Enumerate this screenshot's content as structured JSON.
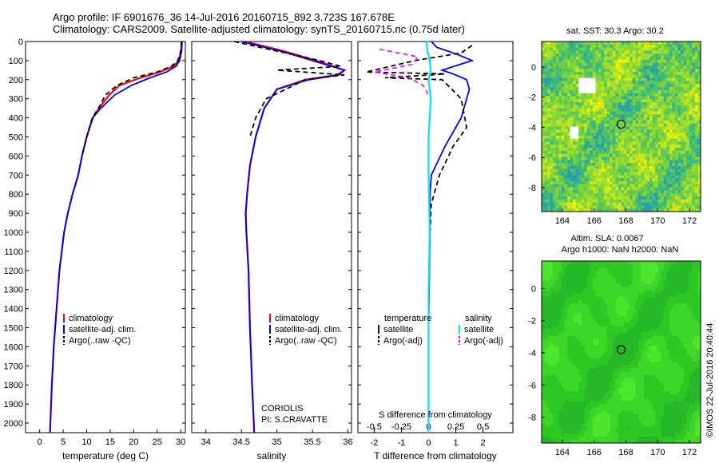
{
  "header": {
    "title_line1": "Argo profile: IF 6901676_36 14-Jul-2016 20160715_892 3.723S 167.678E",
    "title_line2": "Climatology: CARS2009. Satellite-adjusted climatology: synTS_20160715.nc (0.75d later)"
  },
  "colors": {
    "climatology": "#ff0000",
    "satellite": "#0000ff",
    "argo": "#000000",
    "sat_salinity": "#00e5ee",
    "argo_salinity": "#ff00ff"
  },
  "chart_data": [
    {
      "type": "line",
      "id": "temperature",
      "xlabel": "temperature (deg C)",
      "ylabel": "",
      "xlim": [
        -3,
        31
      ],
      "ylim": [
        2050,
        0
      ],
      "xticks": [
        0,
        5,
        10,
        15,
        20,
        25,
        30
      ],
      "yticks": [
        0,
        100,
        200,
        300,
        400,
        500,
        600,
        700,
        800,
        900,
        1000,
        1100,
        1200,
        1300,
        1400,
        1500,
        1600,
        1700,
        1800,
        1900,
        2000
      ],
      "legend": [
        "climatology",
        "satellite-adj. clim.",
        "Argo(..raw -QC)"
      ],
      "series": [
        {
          "name": "climatology",
          "x": [
            30.2,
            30.1,
            29.6,
            28.5,
            25.5,
            21.5,
            17.0,
            14.8,
            12.6,
            11.3,
            10.0,
            9.0,
            8.2,
            7.0,
            6.0,
            5.2,
            4.2,
            3.6,
            3.0,
            2.6,
            2.2
          ],
          "y": [
            0,
            50,
            100,
            130,
            160,
            190,
            230,
            280,
            350,
            400,
            500,
            600,
            700,
            800,
            900,
            1000,
            1200,
            1400,
            1600,
            1800,
            2050
          ]
        },
        {
          "name": "satellite-adj. clim.",
          "x": [
            30.3,
            30.2,
            29.8,
            29.0,
            27.0,
            23.5,
            19.5,
            16.0,
            13.0,
            11.3,
            10.0,
            9.0,
            8.2,
            7.0,
            6.0,
            5.2,
            4.2,
            3.6,
            3.0,
            2.6,
            2.2
          ],
          "y": [
            0,
            50,
            100,
            130,
            160,
            190,
            230,
            280,
            350,
            400,
            500,
            600,
            700,
            800,
            900,
            1000,
            1200,
            1400,
            1600,
            1800,
            2050
          ]
        },
        {
          "name": "Argo(..raw -QC)",
          "x": [
            30.2,
            30.0,
            29.4,
            28.0,
            25.0,
            20.0,
            16.5,
            14.0,
            12.5,
            11.2,
            10.0,
            9.0
          ],
          "y": [
            0,
            50,
            100,
            130,
            160,
            190,
            230,
            280,
            350,
            400,
            500,
            600
          ]
        }
      ]
    },
    {
      "type": "line",
      "id": "salinity",
      "xlabel": "salinity",
      "ylabel": "",
      "xlim": [
        33.8,
        36.05
      ],
      "ylim": [
        2050,
        0
      ],
      "xticks": [
        34,
        34.5,
        35,
        35.5,
        36
      ],
      "legend": [
        "climatology",
        "satellite-adj. clim.",
        "Argo(..raw -QC)"
      ],
      "annotation": [
        "CORIOLIS",
        "PI: S.CRAVATTE"
      ],
      "series": [
        {
          "name": "climatology",
          "x": [
            34.55,
            35.1,
            35.55,
            35.95,
            35.85,
            35.4,
            35.0,
            34.82,
            34.7,
            34.62,
            34.58,
            34.56,
            34.57,
            34.6,
            34.62,
            34.65,
            34.68
          ],
          "y": [
            0,
            50,
            100,
            150,
            175,
            200,
            250,
            350,
            500,
            650,
            800,
            900,
            1000,
            1200,
            1500,
            1800,
            2050
          ]
        },
        {
          "name": "satellite-adj. clim.",
          "x": [
            34.5,
            35.05,
            35.5,
            35.95,
            35.88,
            35.45,
            35.0,
            34.82,
            34.7,
            34.62,
            34.58,
            34.56,
            34.57,
            34.6,
            34.62,
            34.65,
            34.68
          ],
          "y": [
            0,
            50,
            100,
            150,
            175,
            200,
            250,
            350,
            500,
            650,
            800,
            900,
            1000,
            1200,
            1500,
            1800,
            2050
          ]
        },
        {
          "name": "Argo(..raw -QC)",
          "x": [
            34.4,
            35.0,
            35.6,
            35.9,
            35.0,
            35.95,
            35.4,
            34.85,
            34.7,
            34.62
          ],
          "y": [
            0,
            50,
            100,
            130,
            150,
            175,
            200,
            300,
            400,
            500
          ]
        }
      ]
    },
    {
      "type": "line",
      "id": "difference",
      "xlabel": "T difference from climatology",
      "x2label": "S difference from climatology",
      "xlim": [
        -2.6,
        3.1
      ],
      "x2lim": [
        -0.65,
        0.775
      ],
      "ylim": [
        2050,
        0
      ],
      "xticks": [
        -2,
        -1,
        0,
        1,
        2
      ],
      "x2ticks": [
        -0.5,
        -0.25,
        0,
        0.25,
        0.5
      ],
      "x2ticklabels": [
        "-0.5",
        "-0.25",
        "0",
        "0.25",
        "0.5"
      ],
      "legend_temperature_title": "temperature",
      "legend_salinity_title": "salinity",
      "legend": [
        "satellite",
        "Argo(-adj)",
        "satellite",
        "Argo(-adj)"
      ],
      "series": [
        {
          "name": "temperature satellite",
          "x": [
            0.1,
            0.3,
            1.1,
            1.6,
            0.5,
            0.9,
            1.4,
            1.5,
            1.2,
            0.6,
            0.1,
            0.05,
            0.05,
            0.0,
            0.0
          ],
          "y": [
            0,
            30,
            70,
            100,
            150,
            170,
            200,
            250,
            400,
            550,
            700,
            800,
            1000,
            1500,
            2050
          ]
        },
        {
          "name": "temperature Argo(-adj)",
          "x": [
            1.6,
            1.2,
            -0.5,
            -2.3,
            0.6,
            -1.6,
            0.5,
            1.2,
            1.4,
            0.9,
            0.4,
            0.1,
            0.05
          ],
          "y": [
            20,
            60,
            100,
            160,
            170,
            190,
            200,
            300,
            450,
            550,
            700,
            850,
            1000
          ]
        },
        {
          "name": "salinity satellite",
          "x": [
            -0.02,
            -0.01,
            0.01,
            0.02,
            0.0,
            0.02,
            0.01,
            0.0,
            0.0,
            0.01,
            0.0,
            0.0,
            0.0
          ],
          "y": [
            0,
            50,
            100,
            150,
            200,
            300,
            400,
            500,
            700,
            1000,
            1300,
            1600,
            2050
          ]
        },
        {
          "name": "salinity Argo(-adj)",
          "x": [
            -0.45,
            -0.1,
            -0.15,
            -0.5,
            -0.18,
            -0.05,
            0.0
          ],
          "y": [
            40,
            80,
            120,
            160,
            190,
            230,
            280
          ]
        }
      ]
    },
    {
      "type": "heatmap",
      "id": "sst",
      "title": "sat. SST: 30.3 Argo: 30.2",
      "xlim": [
        162.7,
        172.7
      ],
      "ylim": [
        -9.6,
        1.7
      ],
      "xticks": [
        164,
        166,
        168,
        170,
        172
      ],
      "yticks": [
        -8,
        -6,
        -4,
        -2,
        0
      ],
      "marker": {
        "x": 167.7,
        "y": -3.8
      }
    },
    {
      "type": "heatmap",
      "id": "sla",
      "title_line1": "Altim. SLA: 0.0067",
      "title_line2": "Argo h1000: NaN h2000: NaN",
      "xlim": [
        162.7,
        172.7
      ],
      "ylim": [
        -9.6,
        1.7
      ],
      "xticks": [
        164,
        166,
        168,
        170,
        172
      ],
      "yticks": [
        -8,
        -6,
        -4,
        -2,
        0
      ],
      "marker": {
        "x": 167.7,
        "y": -3.8
      }
    }
  ],
  "credit": "©IMOS 22-Jul-2016 20:40:44"
}
